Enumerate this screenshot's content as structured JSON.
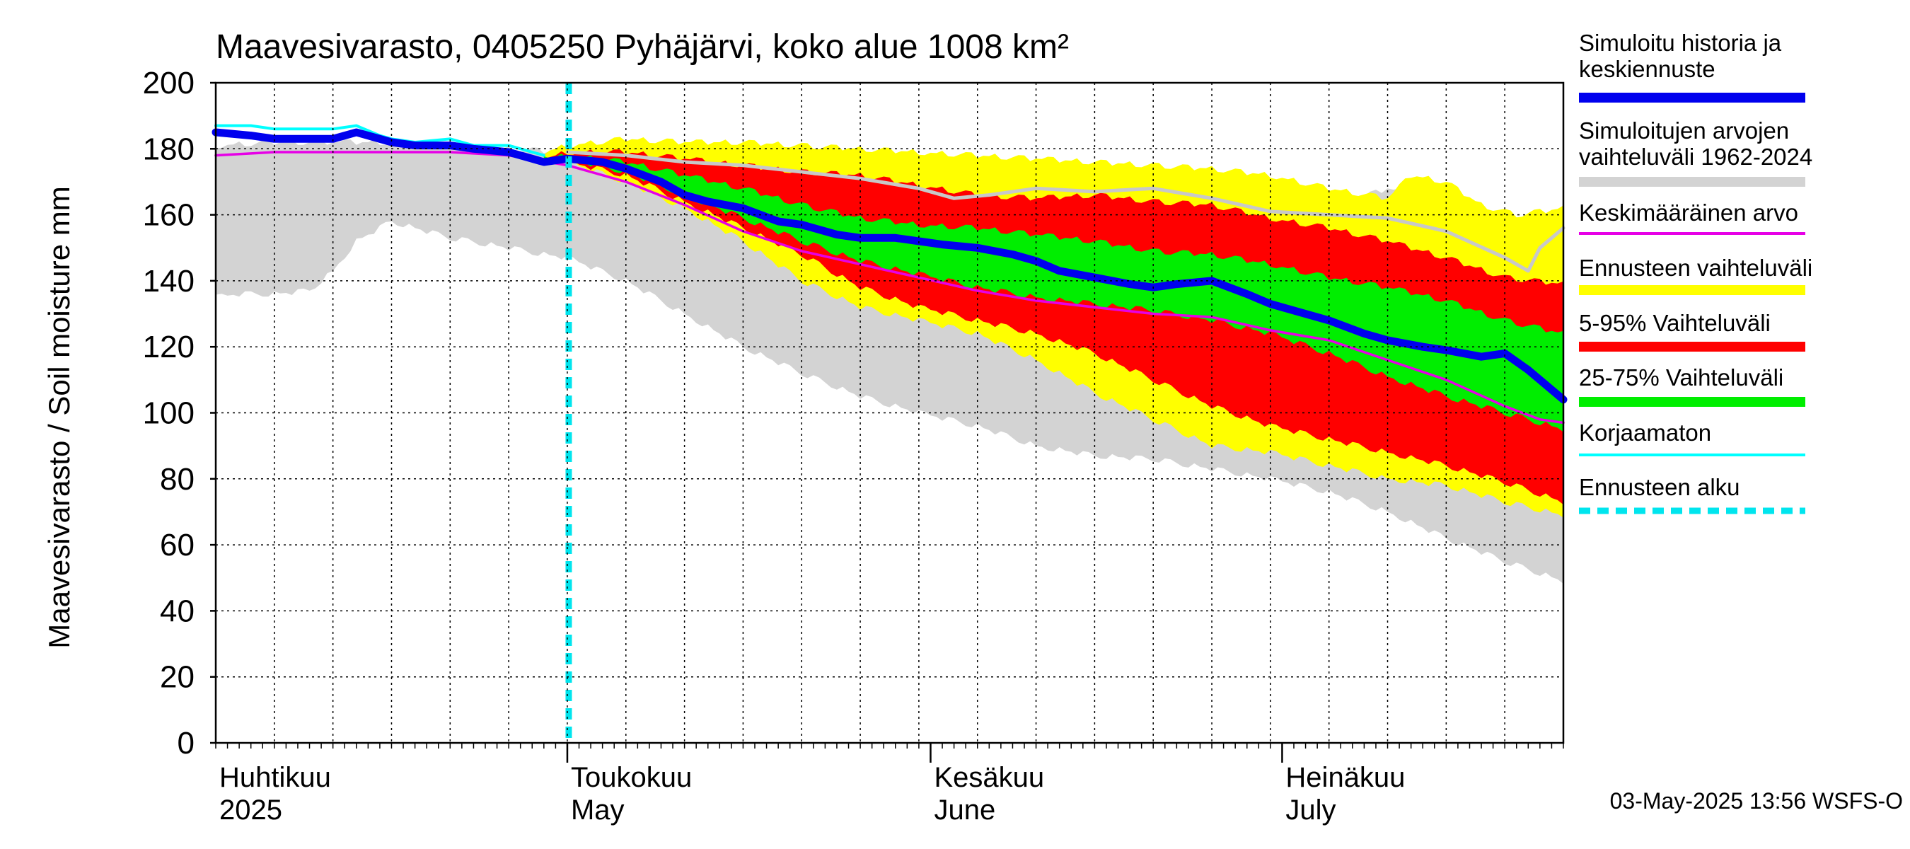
{
  "chart_data": {
    "type": "area",
    "title": "Maavesivarasto, 0405250 Pyhäjärvi, koko alue 1008 km²",
    "ylabel": "Maavesivarasto / Soil moisture   mm",
    "xlabel": "",
    "ylim": [
      0,
      200
    ],
    "yticks": [
      0,
      20,
      40,
      60,
      80,
      100,
      120,
      140,
      160,
      180,
      200
    ],
    "xlim": [
      0,
      115
    ],
    "x_unit": "days since 1 April 2025",
    "grid": true,
    "month_labels": [
      {
        "day": 0,
        "fi": "Huhtikuu",
        "en": "2025"
      },
      {
        "day": 30,
        "fi": "Toukokuu",
        "en": "May"
      },
      {
        "day": 61,
        "fi": "Kesäkuu",
        "en": "June"
      },
      {
        "day": 91,
        "fi": "Heinäkuu",
        "en": "July"
      }
    ],
    "month_boundaries": [
      30,
      61,
      91
    ],
    "forecast_start_day": 30,
    "legend_position": "right",
    "legend": [
      {
        "label": "Simuloitu historia ja keskiennuste",
        "color": "#0000ee",
        "style": "thick"
      },
      {
        "label": "Simuloitujen arvojen vaihteluväli 1962-2024",
        "color": "#d3d3d3",
        "style": "thick"
      },
      {
        "label": "Keskimääräinen arvo",
        "color": "#e600e6",
        "style": "thin"
      },
      {
        "label": "Ennusteen vaihteluväli",
        "color": "#ffff00",
        "style": "thick"
      },
      {
        "label": "5-95% Vaihteluväli",
        "color": "#ff0000",
        "style": "thick"
      },
      {
        "label": "25-75% Vaihteluväli",
        "color": "#00ee00",
        "style": "thick"
      },
      {
        "label": "Korjaamaton",
        "color": "#00ffff",
        "style": "thin"
      },
      {
        "label": "Ennusteen alku",
        "color": "#00e5ee",
        "style": "dashed"
      }
    ],
    "footer": "03-May-2025 13:56 WSFS-O",
    "series": [
      {
        "name": "Simuloitujen arvojen vaihteluväli 1962-2024 (max)",
        "color": "#d3d3d3",
        "x": [
          0,
          5,
          10,
          15,
          20,
          25,
          30,
          35,
          40,
          45,
          50,
          55,
          60,
          65,
          70,
          75,
          80,
          85,
          90,
          95,
          100,
          105,
          108,
          111,
          115
        ],
        "values": [
          181,
          182,
          182,
          182,
          181,
          180,
          179,
          179,
          178,
          176,
          174,
          172,
          170,
          169,
          168,
          167,
          166,
          165,
          163,
          162,
          168,
          164,
          162,
          158,
          156
        ]
      },
      {
        "name": "Simuloitujen arvojen vaihteluväli 1962-2024 (min)",
        "color": "#d3d3d3",
        "x": [
          0,
          2,
          5,
          8,
          10,
          12,
          15,
          18,
          20,
          25,
          28,
          30,
          35,
          40,
          45,
          50,
          55,
          60,
          65,
          70,
          75,
          80,
          85,
          90,
          95,
          100,
          105,
          110,
          115
        ],
        "values": [
          135,
          136,
          136,
          137,
          143,
          152,
          158,
          155,
          153,
          150,
          148,
          147,
          140,
          130,
          120,
          112,
          105,
          100,
          96,
          90,
          87,
          86,
          83,
          80,
          76,
          70,
          62,
          55,
          49
        ]
      },
      {
        "name": "Ennusteen vaihteluväli (max)",
        "color": "#ffff00",
        "x": [
          28,
          30,
          35,
          40,
          45,
          50,
          55,
          60,
          65,
          70,
          75,
          80,
          85,
          90,
          95,
          100,
          102,
          105,
          108,
          111,
          115
        ],
        "values": [
          179,
          181,
          183,
          182,
          182,
          181,
          180,
          179,
          178,
          177,
          176,
          175,
          174,
          172,
          168,
          165,
          172,
          170,
          163,
          160,
          162
        ]
      },
      {
        "name": "Ennusteen vaihteluväli (min)",
        "color": "#ffff00",
        "x": [
          28,
          30,
          35,
          40,
          45,
          50,
          55,
          60,
          65,
          70,
          75,
          80,
          85,
          90,
          95,
          100,
          105,
          110,
          115
        ],
        "values": [
          177,
          176,
          170,
          162,
          152,
          140,
          132,
          128,
          124,
          116,
          106,
          98,
          90,
          88,
          84,
          80,
          78,
          73,
          69
        ]
      },
      {
        "name": "5-95% Vaihteluväli (upper)",
        "color": "#ff0000",
        "x": [
          28,
          30,
          35,
          40,
          45,
          50,
          55,
          60,
          65,
          70,
          75,
          80,
          85,
          90,
          95,
          100,
          105,
          110,
          115
        ],
        "values": [
          177,
          179,
          179,
          177,
          175,
          173,
          172,
          169,
          166,
          165,
          166,
          164,
          163,
          159,
          156,
          152,
          147,
          141,
          139
        ]
      },
      {
        "name": "5-95% Vaihteluväli (lower)",
        "color": "#ff0000",
        "x": [
          28,
          30,
          35,
          40,
          45,
          50,
          55,
          60,
          65,
          70,
          75,
          80,
          85,
          90,
          95,
          100,
          105,
          110,
          115
        ],
        "values": [
          177,
          176,
          172,
          164,
          156,
          148,
          138,
          132,
          128,
          124,
          118,
          110,
          102,
          96,
          92,
          88,
          84,
          79,
          73
        ]
      },
      {
        "name": "25-75% Vaihteluväli (upper)",
        "color": "#00ee00",
        "x": [
          28,
          30,
          35,
          40,
          45,
          50,
          55,
          60,
          65,
          70,
          75,
          80,
          85,
          90,
          95,
          100,
          105,
          110,
          115
        ],
        "values": [
          177,
          178,
          176,
          172,
          168,
          163,
          159,
          157,
          156,
          154,
          152,
          149,
          148,
          145,
          141,
          138,
          134,
          128,
          124
        ]
      },
      {
        "name": "25-75% Vaihteluväli (lower)",
        "color": "#00ee00",
        "x": [
          28,
          30,
          35,
          40,
          45,
          50,
          55,
          60,
          65,
          70,
          75,
          80,
          85,
          90,
          95,
          100,
          105,
          110,
          115
        ],
        "values": [
          177,
          177,
          173,
          166,
          159,
          152,
          146,
          142,
          138,
          135,
          133,
          131,
          128,
          124,
          118,
          111,
          105,
          100,
          95
        ]
      },
      {
        "name": "Keskimääräinen arvo",
        "color": "#e600e6",
        "x": [
          0,
          5,
          10,
          15,
          20,
          25,
          30,
          35,
          40,
          45,
          50,
          55,
          60,
          65,
          70,
          75,
          80,
          85,
          90,
          95,
          100,
          105,
          110,
          113,
          115
        ],
        "values": [
          178,
          179,
          179,
          179,
          179,
          178,
          175,
          170,
          163,
          155,
          149,
          145,
          141,
          137,
          134,
          132,
          130,
          129,
          125,
          122,
          116,
          110,
          102,
          98,
          97
        ]
      },
      {
        "name": "Korjaamaton",
        "color": "#00ffff",
        "x": [
          0,
          3,
          5,
          8,
          10,
          12,
          14,
          15,
          17,
          20,
          22,
          25,
          27,
          28
        ],
        "values": [
          187,
          187,
          186,
          186,
          186,
          187,
          184,
          183,
          182,
          183,
          181,
          181,
          179,
          178
        ]
      },
      {
        "name": "Simuloitu historia ja keskiennuste",
        "color": "#0000ee",
        "x": [
          0,
          3,
          5,
          8,
          10,
          12,
          14,
          15,
          17,
          20,
          22,
          25,
          27,
          28,
          30,
          33,
          35,
          38,
          40,
          42,
          45,
          48,
          50,
          53,
          55,
          58,
          60,
          62,
          65,
          68,
          70,
          72,
          75,
          78,
          80,
          82,
          85,
          88,
          90,
          92,
          95,
          98,
          100,
          103,
          105,
          108,
          110,
          112,
          115
        ],
        "values": [
          185,
          184,
          183,
          183,
          183,
          185,
          183,
          182,
          181,
          181,
          180,
          179,
          177,
          176,
          177,
          176,
          174,
          170,
          166,
          164,
          162,
          158,
          157,
          154,
          153,
          153,
          152,
          151,
          150,
          148,
          146,
          143,
          141,
          139,
          138,
          139,
          140,
          136,
          133,
          131,
          128,
          124,
          122,
          120,
          119,
          117,
          118,
          113,
          104
        ]
      },
      {
        "name": "Simulated grey mid line",
        "color": "#c8c8c8",
        "x": [
          30,
          35,
          40,
          45,
          50,
          55,
          60,
          63,
          66,
          70,
          75,
          80,
          85,
          90,
          95,
          100,
          105,
          110,
          112,
          113,
          115
        ],
        "values": [
          179,
          178,
          176,
          175,
          173,
          171,
          168,
          165,
          166,
          168,
          167,
          168,
          165,
          161,
          160,
          159,
          155,
          147,
          143,
          150,
          156
        ]
      }
    ]
  }
}
